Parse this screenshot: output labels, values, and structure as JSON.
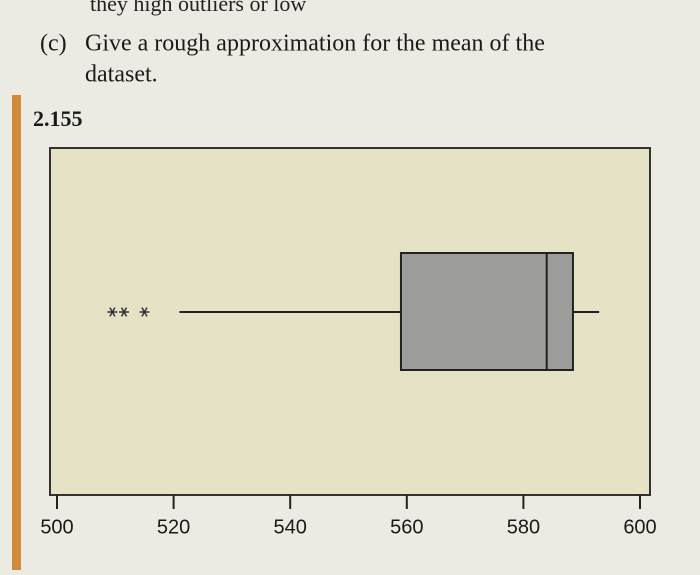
{
  "top_text": "they high outliers or low",
  "question": {
    "label": "(c)",
    "lines": [
      "Give a rough approximation for the mean of the",
      "dataset."
    ]
  },
  "exercise_number": "2.155",
  "chart_data": {
    "type": "boxplot",
    "whisker_low": 521,
    "q1": 559,
    "median": 584,
    "q3": 588.5,
    "whisker_high": 593,
    "outliers": [
      509.5,
      511.5,
      515
    ],
    "xlim": [
      500,
      600
    ],
    "xticks": [
      500,
      520,
      540,
      560,
      580,
      600
    ],
    "box_color": "#9d9d9b",
    "plot_background": "#e6e2c6"
  }
}
